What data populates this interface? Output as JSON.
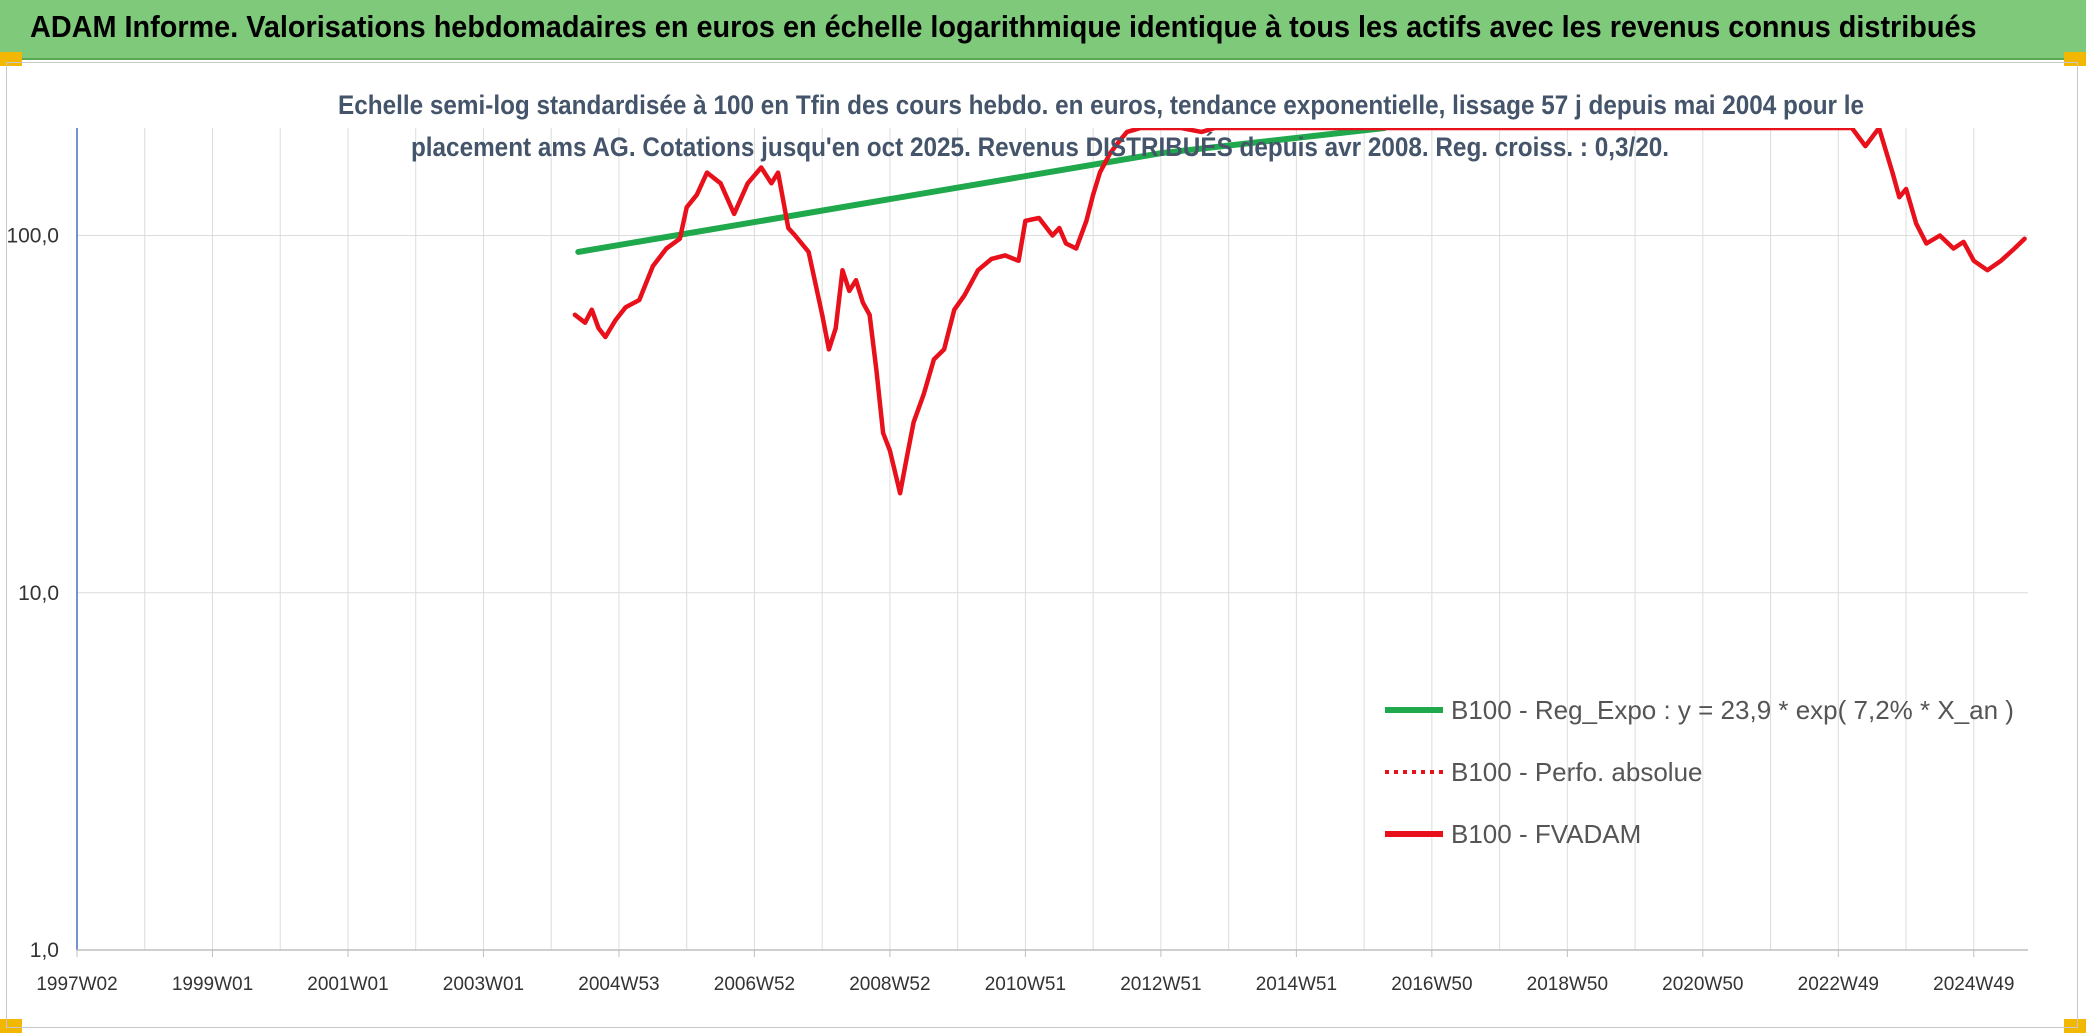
{
  "header": {
    "title": "ADAM Informe. Valorisations hebdomadaires en euros en échelle logarithmique identique à tous les actifs avec les revenus connus distribués"
  },
  "chart_data": {
    "type": "line",
    "title_line1": "Echelle semi-log standardisée à 100 en Tfin des cours hebdo. en euros, tendance exponentielle, lissage 57 j depuis mai 2004 pour le",
    "title_line2": "placement ams AG. Cotations jusqu'en oct 2025. Revenus DISTRIBUÉS depuis avr 2008. Reg. croiss. : 0,3/20.",
    "y_scale": "log",
    "ylim": [
      1,
      200
    ],
    "xlim": [
      1997.0,
      2025.8
    ],
    "y_ticks": [
      {
        "value": 1,
        "label": "1,0"
      },
      {
        "value": 10,
        "label": "10,0"
      },
      {
        "value": 100,
        "label": "100,0"
      }
    ],
    "x_ticks": [
      {
        "value": 1997.0,
        "label": "1997W02"
      },
      {
        "value": 1999.0,
        "label": "1999W01"
      },
      {
        "value": 2001.0,
        "label": "2001W01"
      },
      {
        "value": 2003.0,
        "label": "2003W01"
      },
      {
        "value": 2005.0,
        "label": "2004W53"
      },
      {
        "value": 2007.0,
        "label": "2006W52"
      },
      {
        "value": 2009.0,
        "label": "2008W52"
      },
      {
        "value": 2011.0,
        "label": "2010W51"
      },
      {
        "value": 2013.0,
        "label": "2012W51"
      },
      {
        "value": 2015.0,
        "label": "2014W51"
      },
      {
        "value": 2017.0,
        "label": "2016W50"
      },
      {
        "value": 2019.0,
        "label": "2018W50"
      },
      {
        "value": 2021.0,
        "label": "2020W50"
      },
      {
        "value": 2023.0,
        "label": "2022W49"
      },
      {
        "value": 2025.0,
        "label": "2024W49"
      }
    ],
    "grid": true,
    "legend_position": "bottom-right",
    "series": [
      {
        "name": "B100 - Reg_Expo : y = 23,9 * exp( 7,2% *  X_an )",
        "color": "#1fa84c",
        "style": "solid",
        "x": [
          2004.4,
          2013.0,
          2016.3
        ],
        "y": [
          90,
          170,
          200
        ]
      },
      {
        "name": "B100 - Perfo. absolue",
        "color": "#e8101a",
        "style": "dotted",
        "x": [],
        "y": []
      },
      {
        "name": "B100 - FVADAM",
        "color": "#e8101a",
        "style": "solid",
        "x": [
          2004.35,
          2004.5,
          2004.6,
          2004.7,
          2004.8,
          2004.95,
          2005.1,
          2005.3,
          2005.5,
          2005.7,
          2005.9,
          2006.0,
          2006.15,
          2006.3,
          2006.5,
          2006.7,
          2006.9,
          2007.1,
          2007.25,
          2007.35,
          2007.5,
          2007.6,
          2007.8,
          2008.0,
          2008.1,
          2008.2,
          2008.3,
          2008.4,
          2008.5,
          2008.6,
          2008.7,
          2008.8,
          2008.9,
          2009.0,
          2009.15,
          2009.25,
          2009.35,
          2009.5,
          2009.65,
          2009.8,
          2009.95,
          2010.1,
          2010.3,
          2010.5,
          2010.7,
          2010.9,
          2011.0,
          2011.2,
          2011.4,
          2011.5,
          2011.6,
          2011.75,
          2011.9,
          2012.0,
          2012.1,
          2012.25,
          2012.4,
          2012.5,
          2012.7,
          2012.8,
          2013.0,
          2013.1,
          2013.3,
          2013.6,
          2013.8,
          2023.2,
          2023.4,
          2023.6,
          2023.8,
          2023.9,
          2024.0,
          2024.15,
          2024.3,
          2024.5,
          2024.7,
          2024.85,
          2025.0,
          2025.2,
          2025.4,
          2025.6,
          2025.75
        ],
        "y": [
          60,
          57,
          62,
          55,
          52,
          58,
          63,
          66,
          82,
          92,
          98,
          120,
          130,
          150,
          140,
          115,
          140,
          155,
          140,
          150,
          105,
          100,
          90,
          60,
          48,
          55,
          80,
          70,
          75,
          65,
          60,
          42,
          28,
          25,
          19,
          24,
          30,
          36,
          45,
          48,
          62,
          68,
          80,
          86,
          88,
          85,
          110,
          112,
          100,
          105,
          95,
          92,
          110,
          130,
          150,
          170,
          185,
          195,
          200,
          200,
          200,
          200,
          200,
          195,
          200,
          200,
          178,
          200,
          150,
          128,
          135,
          108,
          95,
          100,
          92,
          96,
          85,
          80,
          85,
          92,
          98
        ]
      }
    ]
  }
}
